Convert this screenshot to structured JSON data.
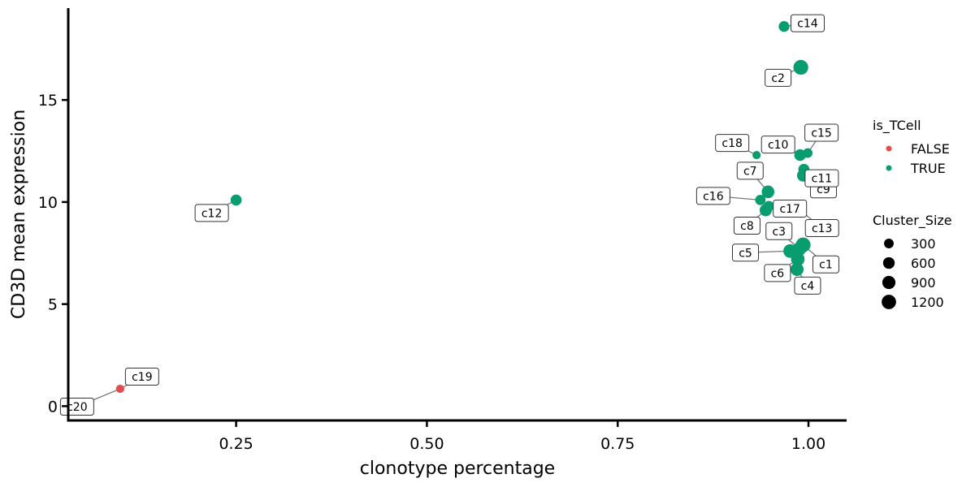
{
  "chart_data": {
    "type": "scatter",
    "xlabel": "clonotype percentage",
    "ylabel": "CD3D mean expression",
    "xlim": [
      0.03,
      1.05
    ],
    "ylim": [
      -0.7,
      19.5
    ],
    "xticks": [
      0.25,
      0.5,
      0.75,
      1.0
    ],
    "xtick_labels": [
      "0.25",
      "0.50",
      "0.75",
      "1.00"
    ],
    "yticks": [
      0,
      5,
      10,
      15
    ],
    "ytick_labels": [
      "0",
      "5",
      "10",
      "15"
    ],
    "grid": false,
    "legend_color": {
      "title": "is_TCell",
      "entries": [
        {
          "label": "FALSE",
          "color": "#e64b4b"
        },
        {
          "label": "TRUE",
          "color": "#079d6f"
        }
      ]
    },
    "legend_size": {
      "title": "Cluster_Size",
      "entries": [
        {
          "label": "300",
          "value": 300
        },
        {
          "label": "600",
          "value": 600
        },
        {
          "label": "900",
          "value": 900
        },
        {
          "label": "1200",
          "value": 1200
        }
      ]
    },
    "points": [
      {
        "label": "c1",
        "x": 0.993,
        "y": 7.9,
        "size": 1300,
        "is_TCell": "TRUE"
      },
      {
        "label": "c2",
        "x": 0.99,
        "y": 16.6,
        "size": 1300,
        "is_TCell": "TRUE"
      },
      {
        "label": "c3",
        "x": 0.988,
        "y": 7.7,
        "size": 1000,
        "is_TCell": "TRUE"
      },
      {
        "label": "c4",
        "x": 0.985,
        "y": 6.7,
        "size": 900,
        "is_TCell": "TRUE"
      },
      {
        "label": "c5",
        "x": 0.976,
        "y": 7.6,
        "size": 1000,
        "is_TCell": "TRUE"
      },
      {
        "label": "c6",
        "x": 0.986,
        "y": 7.2,
        "size": 1000,
        "is_TCell": "TRUE"
      },
      {
        "label": "c7",
        "x": 0.947,
        "y": 10.5,
        "size": 800,
        "is_TCell": "TRUE"
      },
      {
        "label": "c8",
        "x": 0.944,
        "y": 9.6,
        "size": 700,
        "is_TCell": "TRUE"
      },
      {
        "label": "c9",
        "x": 0.993,
        "y": 11.3,
        "size": 700,
        "is_TCell": "TRUE"
      },
      {
        "label": "c10",
        "x": 0.989,
        "y": 12.3,
        "size": 600,
        "is_TCell": "TRUE"
      },
      {
        "label": "c11",
        "x": 0.994,
        "y": 11.6,
        "size": 500,
        "is_TCell": "TRUE"
      },
      {
        "label": "c12",
        "x": 0.25,
        "y": 10.1,
        "size": 500,
        "is_TCell": "TRUE"
      },
      {
        "label": "c13",
        "x": 0.989,
        "y": 9.6,
        "size": 450,
        "is_TCell": "TRUE"
      },
      {
        "label": "c14",
        "x": 0.968,
        "y": 18.6,
        "size": 450,
        "is_TCell": "TRUE"
      },
      {
        "label": "c15",
        "x": 0.999,
        "y": 12.4,
        "size": 300,
        "is_TCell": "TRUE"
      },
      {
        "label": "c16",
        "x": 0.937,
        "y": 10.1,
        "size": 400,
        "is_TCell": "TRUE"
      },
      {
        "label": "c17",
        "x": 0.948,
        "y": 9.8,
        "size": 400,
        "is_TCell": "TRUE"
      },
      {
        "label": "c18",
        "x": 0.932,
        "y": 12.3,
        "size": 150,
        "is_TCell": "TRUE"
      },
      {
        "label": "c19",
        "x": 0.098,
        "y": 0.85,
        "size": 150,
        "is_TCell": "FALSE"
      },
      {
        "label": "c20",
        "x": 0.098,
        "y": 0.85,
        "size": 100,
        "is_TCell": "FALSE"
      }
    ]
  }
}
